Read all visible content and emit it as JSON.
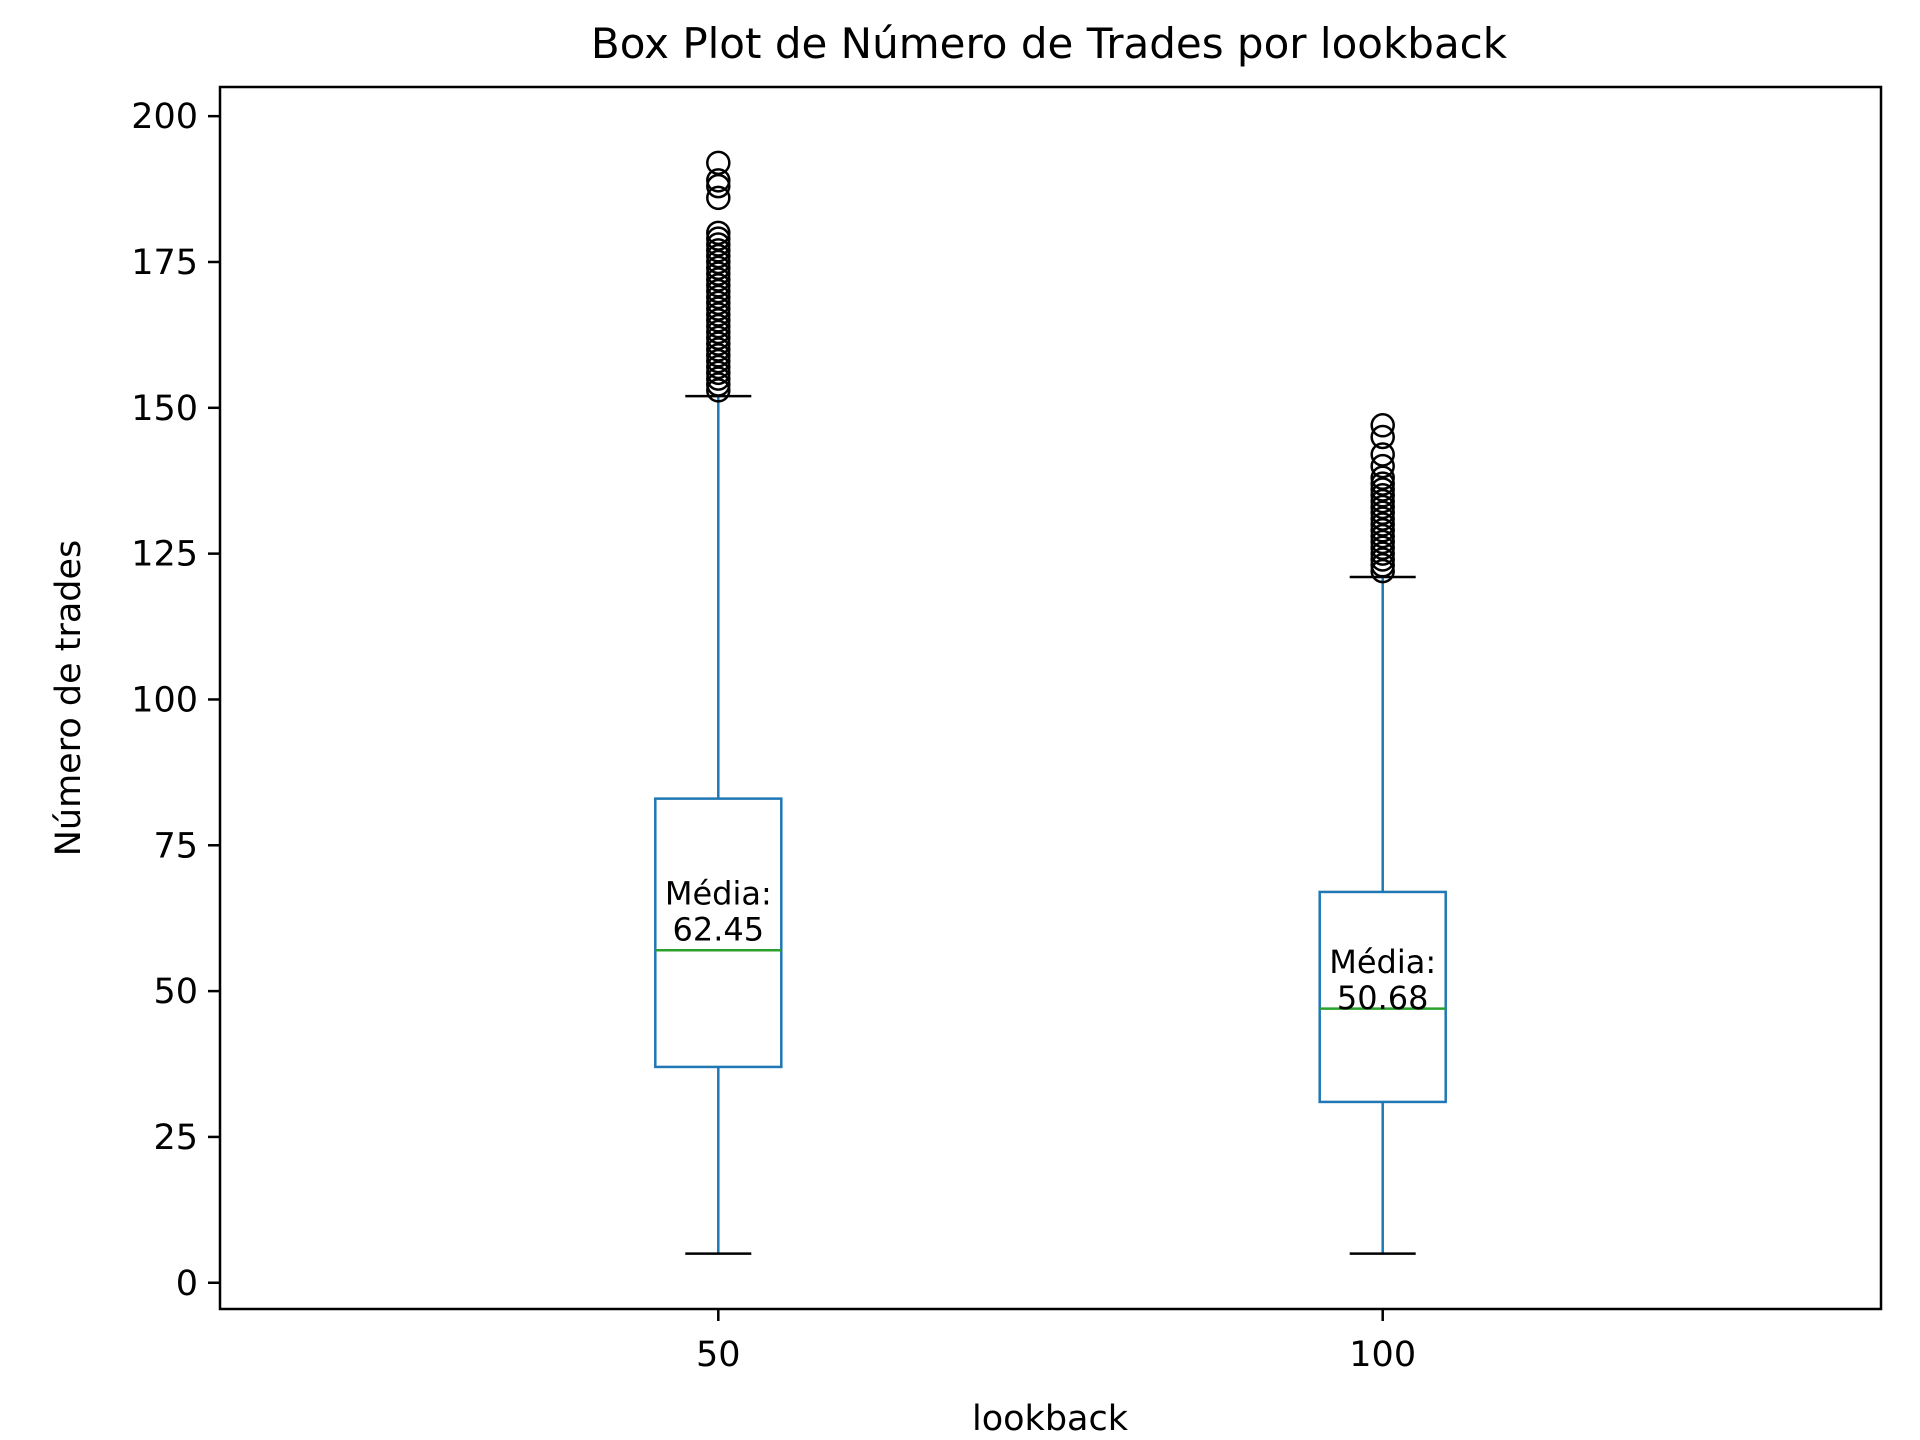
{
  "chart_data": {
    "type": "box",
    "title": "Box Plot de Número de Trades por lookback",
    "xlabel": "lookback",
    "ylabel": "Número de trades",
    "ylim": [
      -4.5,
      205
    ],
    "y_ticks": [
      0,
      25,
      50,
      75,
      100,
      125,
      150,
      175,
      200
    ],
    "grid": false,
    "legend": "none",
    "categories": [
      "50",
      "100"
    ],
    "colors": {
      "box": "#1f77b4",
      "median": "#2ca02c",
      "whisker_cap": "#000000",
      "outlier": "#000000"
    },
    "boxes": [
      {
        "category": "50",
        "whisker_low": 5,
        "q1": 37,
        "median": 57,
        "q3": 83,
        "whisker_high": 152,
        "mean": 62.45,
        "annotation": [
          "Média:",
          "62.45"
        ],
        "outliers": [
          153,
          154,
          155,
          156,
          157,
          158,
          159,
          160,
          161,
          162,
          163,
          164,
          165,
          166,
          167,
          168,
          169,
          170,
          171,
          172,
          173,
          174,
          175,
          176,
          177,
          178,
          179,
          180,
          186,
          188,
          189,
          192
        ]
      },
      {
        "category": "100",
        "whisker_low": 5,
        "q1": 31,
        "median": 47,
        "q3": 67,
        "whisker_high": 121,
        "mean": 50.68,
        "annotation": [
          "Média:",
          "50.68"
        ],
        "outliers": [
          122,
          123,
          124,
          125,
          126,
          127,
          128,
          129,
          130,
          131,
          132,
          133,
          134,
          135,
          136,
          137,
          138,
          140,
          142,
          145,
          147
        ]
      }
    ]
  }
}
